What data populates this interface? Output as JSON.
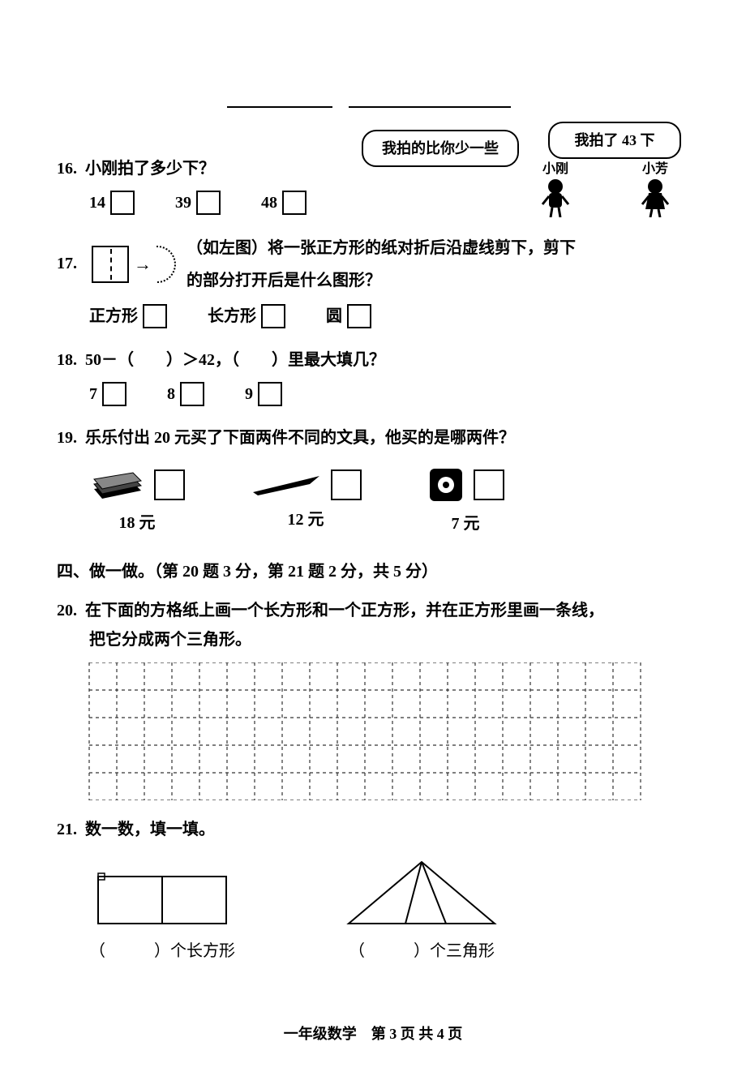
{
  "q16": {
    "number": "16.",
    "text": "小刚拍了多少下？",
    "bubble1": "我拍的比你少一些",
    "bubble2": "我拍了 43 下",
    "kid1_name": "小刚",
    "kid2_name": "小芳",
    "options": [
      "14",
      "39",
      "48"
    ]
  },
  "q17": {
    "number": "17.",
    "line1": "（如左图）将一张正方形的纸对折后沿虚线剪下，剪下",
    "line2": "的部分打开后是什么图形？",
    "options": [
      "正方形",
      "长方形",
      "圆"
    ]
  },
  "q18": {
    "number": "18.",
    "text": "50－（　　）＞42，（　　）里最大填几？",
    "options": [
      "7",
      "8",
      "9"
    ]
  },
  "q19": {
    "number": "19.",
    "text": "乐乐付出 20 元买了下面两件不同的文具，他买的是哪两件？",
    "items": [
      {
        "price": "18 元"
      },
      {
        "price": "12 元"
      },
      {
        "price": "7 元"
      }
    ]
  },
  "section4": {
    "title": "四、做一做。（第 20 题 3 分，第 21 题 2 分，共 5 分）"
  },
  "q20": {
    "number": "20.",
    "line1": "在下面的方格纸上画一个长方形和一个正方形，并在正方形里画一条线，",
    "line2": "把它分成两个三角形。",
    "grid": {
      "cols": 20,
      "rows": 5,
      "cell": 34,
      "stroke": "#333333",
      "dash": "4,4"
    }
  },
  "q21": {
    "number": "21.",
    "text": "数一数，填一填。",
    "label_rect": "（　　　）个长方形",
    "label_tri": "（　　　）个三角形"
  },
  "footer": "一年级数学　第 3 页 共 4 页"
}
